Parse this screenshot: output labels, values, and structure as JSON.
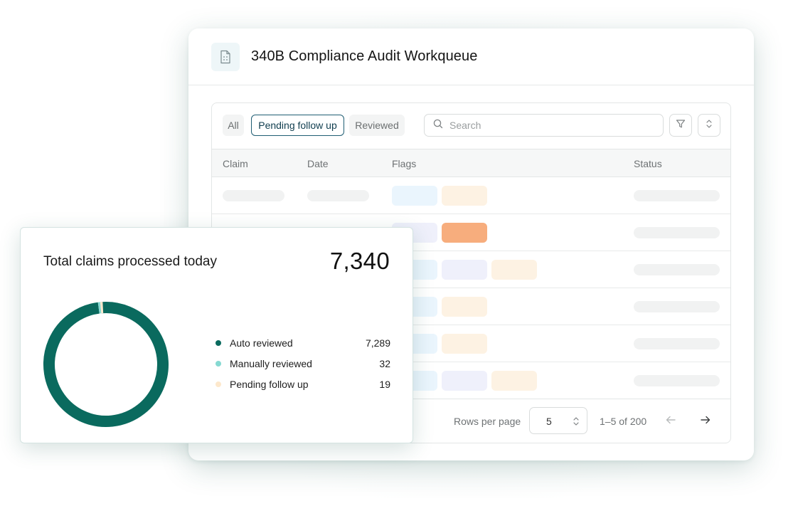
{
  "workqueue": {
    "title": "340B Compliance Audit Workqueue",
    "header_icon": "document-icon",
    "filters": [
      {
        "label": "All",
        "active": false
      },
      {
        "label": "Pending follow up",
        "active": true
      },
      {
        "label": "Reviewed",
        "active": false
      }
    ],
    "search": {
      "placeholder": "Search",
      "value": ""
    },
    "toolbar_icons": [
      "filter-icon",
      "sort-icon"
    ],
    "columns": [
      "Claim",
      "Date",
      "Flags",
      "Status"
    ],
    "pagination": {
      "rows_per_page_label": "Rows per page",
      "rows_per_page": "5",
      "range_text": "1–5 of 200"
    }
  },
  "stats": {
    "title": "Total claims processed today",
    "total": "7,340",
    "legend": [
      {
        "label": "Auto reviewed",
        "value": "7,289",
        "count": 7289,
        "color": "#0a6a5e"
      },
      {
        "label": "Manually reviewed",
        "value": "32",
        "count": 32,
        "color": "#86d9d2"
      },
      {
        "label": "Pending follow up",
        "value": "19",
        "count": 19,
        "color": "#fde8cc"
      }
    ]
  },
  "colors": {
    "accent": "#1f5d73",
    "flag_blue": "#eaf5fd",
    "flag_peach": "#fdf2e3",
    "flag_lavender": "#eff0fb",
    "flag_orange": "#f7ad7d"
  }
}
